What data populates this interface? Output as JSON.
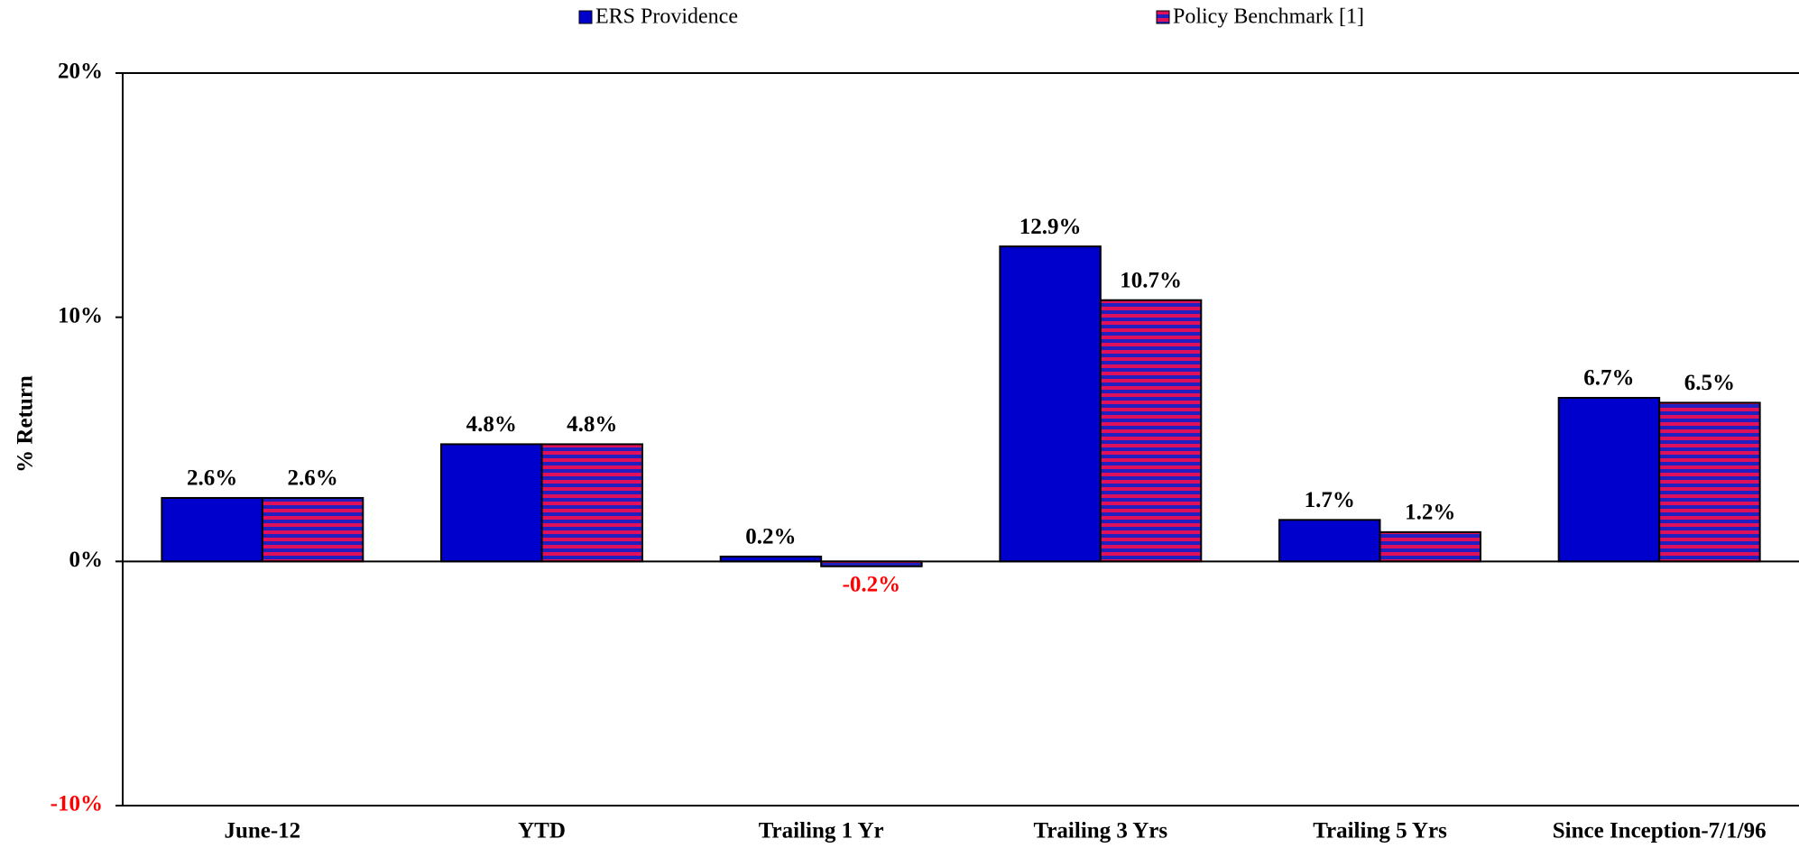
{
  "chart_data": {
    "type": "bar",
    "y_label": "% Return",
    "categories": [
      "June-12",
      "YTD",
      "Trailing 1 Yr",
      "Trailing 3 Yrs",
      "Trailing 5 Yrs",
      "Since Inception-7/1/96"
    ],
    "series": [
      {
        "name": "ERS Providence",
        "color": "#0000cc",
        "values": [
          2.6,
          4.8,
          0.2,
          12.9,
          1.7,
          6.7
        ],
        "value_labels": [
          "2.6%",
          "4.8%",
          "0.2%",
          "12.9%",
          "1.7%",
          "6.7%"
        ]
      },
      {
        "name": "Policy Benchmark [1]",
        "color": "#2020c0",
        "stripe_color": "#e0105a",
        "values": [
          2.6,
          4.8,
          -0.2,
          10.7,
          1.2,
          6.5
        ],
        "value_labels": [
          "2.6%",
          "4.8%",
          "-0.2%",
          "10.7%",
          "1.2%",
          "6.5%"
        ]
      }
    ],
    "ylim": [
      -10,
      20
    ],
    "yticks": [
      {
        "value": -10,
        "label": "-10%"
      },
      {
        "value": 0,
        "label": "0%"
      },
      {
        "value": 10,
        "label": "10%"
      },
      {
        "value": 20,
        "label": "20%"
      }
    ],
    "negative_color": "#ff0000"
  }
}
